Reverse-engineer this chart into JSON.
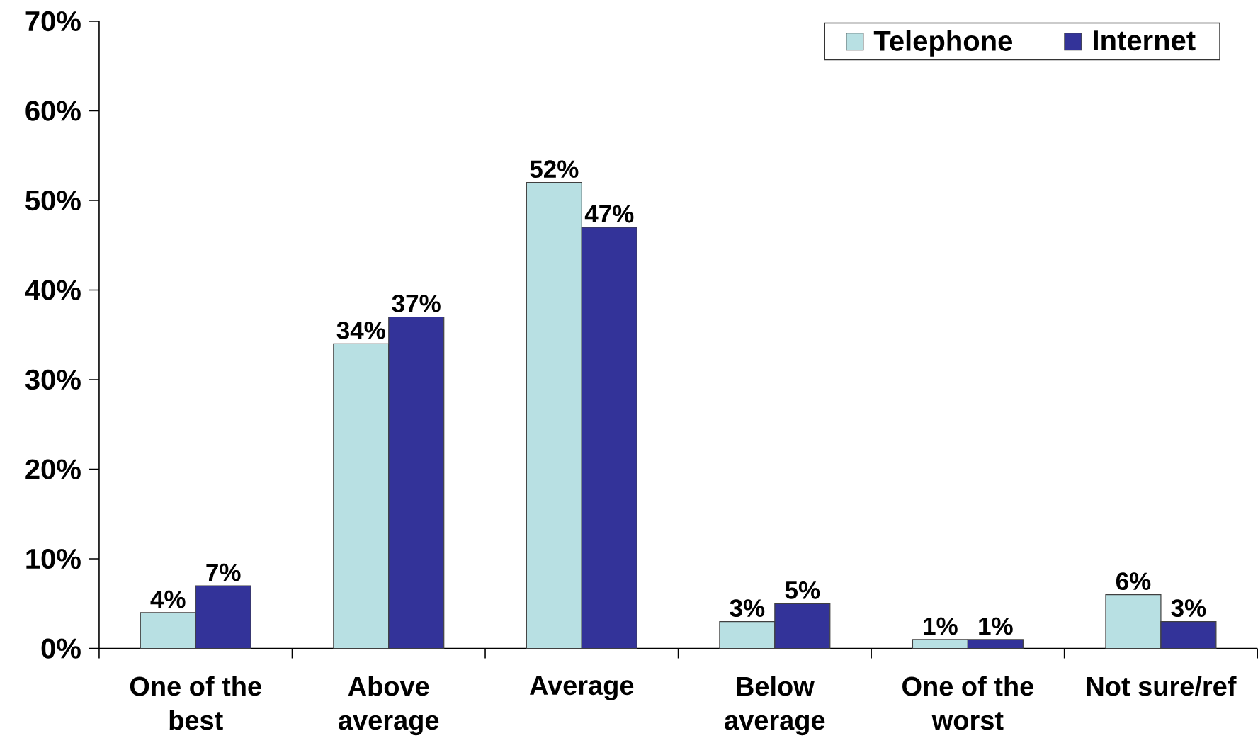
{
  "chart_data": {
    "type": "bar",
    "categories": [
      "One of the best",
      "Above average",
      "Average",
      "Below average",
      "One of the worst",
      "Not sure/ref"
    ],
    "series": [
      {
        "name": "Telephone",
        "color": "#b8e0e3",
        "values": [
          4,
          34,
          52,
          3,
          1,
          6
        ],
        "value_labels": [
          "4%",
          "34%",
          "52%",
          "3%",
          "1%",
          "6%"
        ]
      },
      {
        "name": "Internet",
        "color": "#333399",
        "values": [
          7,
          37,
          47,
          5,
          1,
          3
        ],
        "value_labels": [
          "7%",
          "37%",
          "47%",
          "5%",
          "1%",
          "3%"
        ]
      }
    ],
    "ylim": [
      0,
      70
    ],
    "yticks": [
      {
        "value": 0,
        "label": "0%"
      },
      {
        "value": 10,
        "label": "10%"
      },
      {
        "value": 20,
        "label": "20%"
      },
      {
        "value": 30,
        "label": "30%"
      },
      {
        "value": 40,
        "label": "40%"
      },
      {
        "value": 50,
        "label": "50%"
      },
      {
        "value": 60,
        "label": "60%"
      },
      {
        "value": 70,
        "label": "70%"
      }
    ],
    "legend": "top right"
  }
}
